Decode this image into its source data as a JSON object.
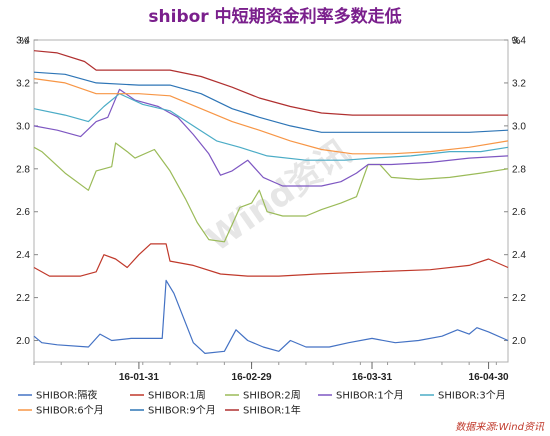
{
  "chart_data": {
    "type": "line",
    "title": "shibor 中短期资金利率多数走低",
    "unit_left": "%",
    "unit_right": "%",
    "ylim": [
      1.9,
      3.4
    ],
    "yticks": [
      "2.0",
      "2.2",
      "2.4",
      "2.6",
      "2.8",
      "3.0",
      "3.2",
      "3.4"
    ],
    "xlim": [
      "2016-01-04",
      "2016-05-05"
    ],
    "xticks": [
      {
        "date": "2016-01-31",
        "label": "16-01-31"
      },
      {
        "date": "2016-02-29",
        "label": "16-02-29"
      },
      {
        "date": "2016-03-31",
        "label": "16-03-31"
      },
      {
        "date": "2016-04-30",
        "label": "16-04-30"
      }
    ],
    "watermark": "Wind资讯",
    "source": "数据来源:Wind资讯",
    "grid": false,
    "legend_position": "bottom",
    "series": [
      {
        "name": "SHIBOR:隔夜",
        "color": "#4472c4",
        "points": [
          [
            "2016-01-04",
            2.02
          ],
          [
            "2016-01-06",
            1.99
          ],
          [
            "2016-01-10",
            1.98
          ],
          [
            "2016-01-18",
            1.97
          ],
          [
            "2016-01-21",
            2.03
          ],
          [
            "2016-01-24",
            2.0
          ],
          [
            "2016-01-29",
            2.01
          ],
          [
            "2016-02-03",
            2.01
          ],
          [
            "2016-02-06",
            2.01
          ],
          [
            "2016-02-07",
            2.28
          ],
          [
            "2016-02-09",
            2.22
          ],
          [
            "2016-02-14",
            1.99
          ],
          [
            "2016-02-17",
            1.94
          ],
          [
            "2016-02-22",
            1.95
          ],
          [
            "2016-02-25",
            2.05
          ],
          [
            "2016-02-28",
            2.0
          ],
          [
            "2016-03-03",
            1.97
          ],
          [
            "2016-03-07",
            1.95
          ],
          [
            "2016-03-10",
            2.0
          ],
          [
            "2016-03-14",
            1.97
          ],
          [
            "2016-03-20",
            1.97
          ],
          [
            "2016-03-25",
            1.99
          ],
          [
            "2016-03-31",
            2.01
          ],
          [
            "2016-04-06",
            1.99
          ],
          [
            "2016-04-12",
            2.0
          ],
          [
            "2016-04-18",
            2.02
          ],
          [
            "2016-04-22",
            2.05
          ],
          [
            "2016-04-25",
            2.03
          ],
          [
            "2016-04-27",
            2.06
          ],
          [
            "2016-04-30",
            2.04
          ],
          [
            "2016-05-05",
            2.0
          ]
        ]
      },
      {
        "name": "SHIBOR:1周",
        "color": "#c0392b",
        "points": [
          [
            "2016-01-04",
            2.34
          ],
          [
            "2016-01-08",
            2.3
          ],
          [
            "2016-01-16",
            2.3
          ],
          [
            "2016-01-20",
            2.32
          ],
          [
            "2016-01-22",
            2.4
          ],
          [
            "2016-01-25",
            2.38
          ],
          [
            "2016-01-28",
            2.34
          ],
          [
            "2016-01-31",
            2.4
          ],
          [
            "2016-02-03",
            2.45
          ],
          [
            "2016-02-07",
            2.45
          ],
          [
            "2016-02-08",
            2.37
          ],
          [
            "2016-02-14",
            2.35
          ],
          [
            "2016-02-21",
            2.31
          ],
          [
            "2016-02-28",
            2.3
          ],
          [
            "2016-03-07",
            2.3
          ],
          [
            "2016-03-17",
            2.31
          ],
          [
            "2016-03-31",
            2.32
          ],
          [
            "2016-04-15",
            2.33
          ],
          [
            "2016-04-25",
            2.35
          ],
          [
            "2016-04-30",
            2.38
          ],
          [
            "2016-05-05",
            2.34
          ]
        ]
      },
      {
        "name": "SHIBOR:2周",
        "color": "#9bbb59",
        "points": [
          [
            "2016-01-04",
            2.9
          ],
          [
            "2016-01-06",
            2.88
          ],
          [
            "2016-01-12",
            2.78
          ],
          [
            "2016-01-18",
            2.7
          ],
          [
            "2016-01-20",
            2.79
          ],
          [
            "2016-01-24",
            2.81
          ],
          [
            "2016-01-25",
            2.92
          ],
          [
            "2016-01-28",
            2.88
          ],
          [
            "2016-01-30",
            2.85
          ],
          [
            "2016-02-04",
            2.89
          ],
          [
            "2016-02-08",
            2.79
          ],
          [
            "2016-02-12",
            2.66
          ],
          [
            "2016-02-15",
            2.55
          ],
          [
            "2016-02-18",
            2.47
          ],
          [
            "2016-02-22",
            2.46
          ],
          [
            "2016-02-26",
            2.62
          ],
          [
            "2016-02-29",
            2.64
          ],
          [
            "2016-03-02",
            2.7
          ],
          [
            "2016-03-04",
            2.6
          ],
          [
            "2016-03-08",
            2.58
          ],
          [
            "2016-03-14",
            2.58
          ],
          [
            "2016-03-18",
            2.61
          ],
          [
            "2016-03-23",
            2.64
          ],
          [
            "2016-03-27",
            2.67
          ],
          [
            "2016-03-30",
            2.82
          ],
          [
            "2016-04-02",
            2.82
          ],
          [
            "2016-04-05",
            2.76
          ],
          [
            "2016-04-12",
            2.75
          ],
          [
            "2016-04-20",
            2.76
          ],
          [
            "2016-04-28",
            2.78
          ],
          [
            "2016-05-05",
            2.8
          ]
        ]
      },
      {
        "name": "SHIBOR:1个月",
        "color": "#7e57c2",
        "points": [
          [
            "2016-01-04",
            3.0
          ],
          [
            "2016-01-10",
            2.98
          ],
          [
            "2016-01-16",
            2.95
          ],
          [
            "2016-01-20",
            3.02
          ],
          [
            "2016-01-23",
            3.04
          ],
          [
            "2016-01-26",
            3.17
          ],
          [
            "2016-01-30",
            3.12
          ],
          [
            "2016-02-05",
            3.09
          ],
          [
            "2016-02-10",
            3.04
          ],
          [
            "2016-02-14",
            2.96
          ],
          [
            "2016-02-18",
            2.87
          ],
          [
            "2016-02-21",
            2.77
          ],
          [
            "2016-02-24",
            2.79
          ],
          [
            "2016-02-28",
            2.84
          ],
          [
            "2016-03-03",
            2.76
          ],
          [
            "2016-03-08",
            2.72
          ],
          [
            "2016-03-13",
            2.72
          ],
          [
            "2016-03-18",
            2.72
          ],
          [
            "2016-03-23",
            2.74
          ],
          [
            "2016-03-27",
            2.78
          ],
          [
            "2016-03-30",
            2.82
          ],
          [
            "2016-04-05",
            2.82
          ],
          [
            "2016-04-15",
            2.83
          ],
          [
            "2016-04-25",
            2.85
          ],
          [
            "2016-05-05",
            2.86
          ]
        ]
      },
      {
        "name": "SHIBOR:3个月",
        "color": "#4bacc6",
        "points": [
          [
            "2016-01-04",
            3.08
          ],
          [
            "2016-01-12",
            3.05
          ],
          [
            "2016-01-18",
            3.02
          ],
          [
            "2016-01-22",
            3.09
          ],
          [
            "2016-01-26",
            3.15
          ],
          [
            "2016-02-01",
            3.1
          ],
          [
            "2016-02-08",
            3.07
          ],
          [
            "2016-02-14",
            3.0
          ],
          [
            "2016-02-20",
            2.93
          ],
          [
            "2016-02-26",
            2.9
          ],
          [
            "2016-03-04",
            2.86
          ],
          [
            "2016-03-14",
            2.84
          ],
          [
            "2016-03-24",
            2.84
          ],
          [
            "2016-03-31",
            2.85
          ],
          [
            "2016-04-10",
            2.86
          ],
          [
            "2016-04-20",
            2.88
          ],
          [
            "2016-04-28",
            2.88
          ],
          [
            "2016-05-05",
            2.9
          ]
        ]
      },
      {
        "name": "SHIBOR:6个月",
        "color": "#f79646",
        "points": [
          [
            "2016-01-04",
            3.22
          ],
          [
            "2016-01-12",
            3.2
          ],
          [
            "2016-01-20",
            3.15
          ],
          [
            "2016-01-31",
            3.15
          ],
          [
            "2016-02-08",
            3.14
          ],
          [
            "2016-02-16",
            3.08
          ],
          [
            "2016-02-24",
            3.02
          ],
          [
            "2016-03-02",
            2.98
          ],
          [
            "2016-03-10",
            2.93
          ],
          [
            "2016-03-18",
            2.89
          ],
          [
            "2016-03-26",
            2.87
          ],
          [
            "2016-04-05",
            2.87
          ],
          [
            "2016-04-15",
            2.88
          ],
          [
            "2016-04-25",
            2.9
          ],
          [
            "2016-05-05",
            2.93
          ]
        ]
      },
      {
        "name": "SHIBOR:9个月",
        "color": "#2e75b6",
        "points": [
          [
            "2016-01-04",
            3.25
          ],
          [
            "2016-01-12",
            3.24
          ],
          [
            "2016-01-20",
            3.2
          ],
          [
            "2016-01-31",
            3.19
          ],
          [
            "2016-02-08",
            3.19
          ],
          [
            "2016-02-16",
            3.15
          ],
          [
            "2016-02-24",
            3.08
          ],
          [
            "2016-03-02",
            3.04
          ],
          [
            "2016-03-10",
            3.0
          ],
          [
            "2016-03-18",
            2.97
          ],
          [
            "2016-03-26",
            2.97
          ],
          [
            "2016-04-05",
            2.97
          ],
          [
            "2016-04-15",
            2.97
          ],
          [
            "2016-04-25",
            2.97
          ],
          [
            "2016-05-05",
            2.98
          ]
        ]
      },
      {
        "name": "SHIBOR:1年",
        "color": "#b03030",
        "points": [
          [
            "2016-01-04",
            3.35
          ],
          [
            "2016-01-10",
            3.34
          ],
          [
            "2016-01-17",
            3.3
          ],
          [
            "2016-01-20",
            3.26
          ],
          [
            "2016-01-31",
            3.26
          ],
          [
            "2016-02-08",
            3.26
          ],
          [
            "2016-02-16",
            3.23
          ],
          [
            "2016-02-24",
            3.18
          ],
          [
            "2016-03-02",
            3.13
          ],
          [
            "2016-03-10",
            3.09
          ],
          [
            "2016-03-18",
            3.06
          ],
          [
            "2016-03-26",
            3.05
          ],
          [
            "2016-04-05",
            3.05
          ],
          [
            "2016-04-15",
            3.05
          ],
          [
            "2016-04-25",
            3.05
          ],
          [
            "2016-05-05",
            3.05
          ]
        ]
      }
    ]
  }
}
